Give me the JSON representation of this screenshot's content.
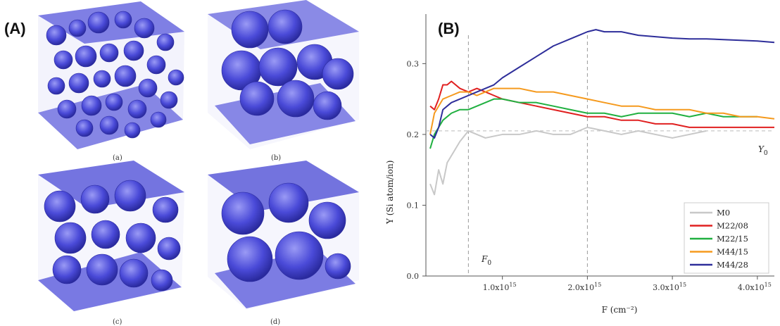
{
  "panels": {
    "left_letter": "(A)",
    "right_letter": "(B)",
    "sub_labels": [
      "(a)",
      "(b)",
      "(c)",
      "(d)"
    ]
  },
  "colors": {
    "bubble": "#4a4ad8",
    "bubble_dark": "#2c2ca8",
    "M0": "#c8c8c8",
    "M22/08": "#e02020",
    "M22/15": "#20b040",
    "M44/15": "#f59a1e",
    "M44/28": "#2e2e9a"
  },
  "chart_data": {
    "type": "line",
    "xlabel": "F (cm⁻²)",
    "ylabel": "Y (Si atom/ion)",
    "xlim": [
      100000000000000.0,
      4200000000000000.0
    ],
    "ylim": [
      0.0,
      0.37
    ],
    "x_ticks": [
      {
        "value": 1000000000000000.0,
        "label": "1.0x10",
        "exp": "15"
      },
      {
        "value": 2000000000000000.0,
        "label": "2.0x10",
        "exp": "15"
      },
      {
        "value": 3000000000000000.0,
        "label": "3.0x10",
        "exp": "15"
      },
      {
        "value": 4000000000000000.0,
        "label": "4.0x10",
        "exp": "15"
      }
    ],
    "y_ticks": [
      {
        "value": 0.0,
        "label": "0.0"
      },
      {
        "value": 0.1,
        "label": "0.1"
      },
      {
        "value": 0.2,
        "label": "0.2"
      },
      {
        "value": 0.3,
        "label": "0.3"
      }
    ],
    "reference_lines": {
      "F0": {
        "value": 600000000000000.0,
        "label": "F",
        "sub": "0"
      },
      "F_2e15": {
        "value": 2000000000000000.0
      },
      "Y0": {
        "value": 0.205,
        "label": "Y",
        "sub": "0"
      }
    },
    "legend_position": "bottom-right",
    "series": [
      {
        "name": "M0",
        "x": [
          0.15,
          0.2,
          0.25,
          0.3,
          0.35,
          0.4,
          0.5,
          0.6,
          0.7,
          0.8,
          1.0,
          1.2,
          1.4,
          1.6,
          1.8,
          2.0,
          2.2,
          2.4,
          2.6,
          2.8,
          3.0,
          3.2,
          3.4
        ],
        "y": [
          0.13,
          0.115,
          0.15,
          0.13,
          0.16,
          0.17,
          0.19,
          0.205,
          0.2,
          0.195,
          0.2,
          0.2,
          0.205,
          0.2,
          0.2,
          0.21,
          0.205,
          0.2,
          0.205,
          0.2,
          0.195,
          0.2,
          0.205
        ]
      },
      {
        "name": "M22/08",
        "x": [
          0.15,
          0.2,
          0.25,
          0.3,
          0.35,
          0.4,
          0.5,
          0.6,
          0.7,
          0.8,
          0.9,
          1.0,
          1.2,
          1.4,
          1.6,
          1.8,
          2.0,
          2.2,
          2.4,
          2.6,
          2.8,
          3.0,
          3.2,
          3.4,
          3.6,
          3.8,
          4.0,
          4.2
        ],
        "y": [
          0.24,
          0.235,
          0.25,
          0.27,
          0.27,
          0.275,
          0.265,
          0.26,
          0.265,
          0.26,
          0.255,
          0.25,
          0.245,
          0.24,
          0.235,
          0.23,
          0.225,
          0.225,
          0.22,
          0.22,
          0.215,
          0.215,
          0.21,
          0.21,
          0.21,
          0.21,
          0.21,
          0.21
        ]
      },
      {
        "name": "M22/15",
        "x": [
          0.15,
          0.2,
          0.25,
          0.3,
          0.4,
          0.5,
          0.6,
          0.7,
          0.8,
          0.9,
          1.0,
          1.2,
          1.4,
          1.6,
          1.8,
          2.0,
          2.2,
          2.4,
          2.6,
          2.8,
          3.0,
          3.2,
          3.4,
          3.6,
          3.8,
          4.0
        ],
        "y": [
          0.18,
          0.2,
          0.21,
          0.22,
          0.23,
          0.235,
          0.235,
          0.24,
          0.245,
          0.25,
          0.25,
          0.245,
          0.245,
          0.24,
          0.235,
          0.23,
          0.23,
          0.225,
          0.23,
          0.23,
          0.23,
          0.225,
          0.23,
          0.225,
          0.225,
          0.225
        ]
      },
      {
        "name": "M44/15",
        "x": [
          0.15,
          0.2,
          0.25,
          0.3,
          0.4,
          0.5,
          0.6,
          0.7,
          0.8,
          0.9,
          1.0,
          1.1,
          1.2,
          1.4,
          1.6,
          1.8,
          2.0,
          2.2,
          2.4,
          2.6,
          2.8,
          3.0,
          3.2,
          3.4,
          3.6,
          3.8,
          4.0,
          4.2
        ],
        "y": [
          0.2,
          0.23,
          0.24,
          0.25,
          0.255,
          0.26,
          0.26,
          0.255,
          0.26,
          0.265,
          0.265,
          0.265,
          0.265,
          0.26,
          0.26,
          0.255,
          0.25,
          0.245,
          0.24,
          0.24,
          0.235,
          0.235,
          0.235,
          0.23,
          0.23,
          0.225,
          0.225,
          0.222
        ]
      },
      {
        "name": "M44/28",
        "x": [
          0.15,
          0.2,
          0.25,
          0.3,
          0.35,
          0.4,
          0.5,
          0.6,
          0.7,
          0.8,
          0.9,
          1.0,
          1.2,
          1.4,
          1.6,
          1.8,
          1.9,
          2.0,
          2.1,
          2.2,
          2.4,
          2.6,
          2.8,
          3.0,
          3.2,
          3.4,
          3.6,
          3.8,
          4.0,
          4.2
        ],
        "y": [
          0.2,
          0.195,
          0.21,
          0.235,
          0.24,
          0.245,
          0.25,
          0.255,
          0.26,
          0.265,
          0.27,
          0.28,
          0.295,
          0.31,
          0.325,
          0.335,
          0.34,
          0.345,
          0.348,
          0.345,
          0.345,
          0.34,
          0.338,
          0.336,
          0.335,
          0.335,
          0.334,
          0.333,
          0.332,
          0.33
        ]
      }
    ]
  }
}
